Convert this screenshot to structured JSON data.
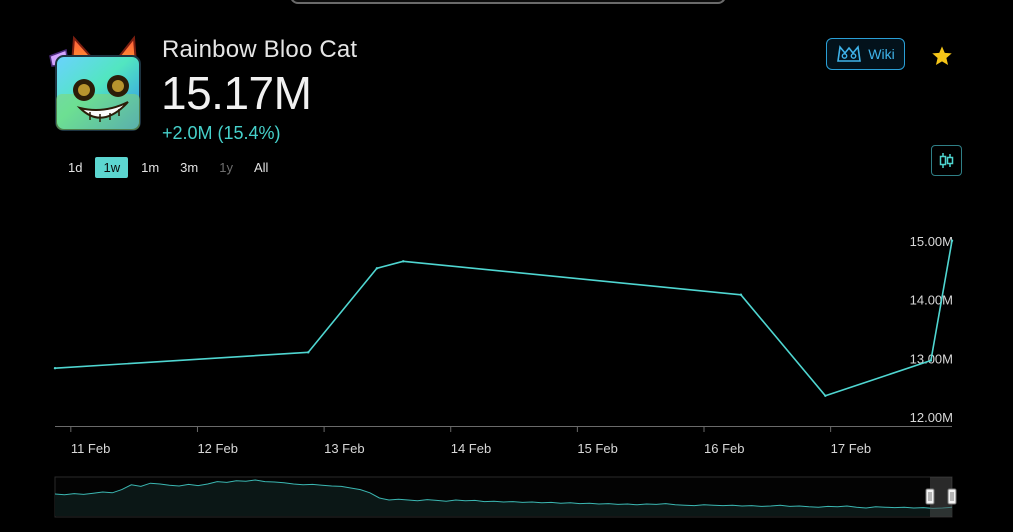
{
  "item": {
    "name": "Rainbow Bloo Cat",
    "value": "15.17M",
    "change": "+2.0M (15.4%)",
    "icon": "rainbow-bloo-cat-icon"
  },
  "actions": {
    "wiki_label": "Wiki",
    "wiki_icon": "wiki-logo-icon",
    "favorite_icon": "star-icon",
    "chart_type_icon": "candlestick-icon"
  },
  "range_tabs": [
    {
      "label": "1d",
      "state": "normal"
    },
    {
      "label": "1w",
      "state": "active"
    },
    {
      "label": "1m",
      "state": "normal"
    },
    {
      "label": "3m",
      "state": "normal"
    },
    {
      "label": "1y",
      "state": "disabled"
    },
    {
      "label": "All",
      "state": "normal"
    }
  ],
  "colors": {
    "line": "#4fd6d1",
    "accent": "#5cd6d0",
    "star": "#f5c518",
    "wiki": "#3fb3ea",
    "axis": "#6a6a6a",
    "navigator_line": "#3bb7b2",
    "navigator_fill": "#0b1716"
  },
  "chart_data": {
    "type": "line",
    "x_axis": "dates",
    "x_ticks": [
      "11 Feb",
      "12 Feb",
      "13 Feb",
      "14 Feb",
      "15 Feb",
      "16 Feb",
      "17 Feb"
    ],
    "y_ticks": [
      "12.00M",
      "13.00M",
      "14.00M",
      "15.00M"
    ],
    "ylim": [
      11.9,
      15.1
    ],
    "xlim": [
      "2025-02-10 21:00",
      "2025-02-17 23:00"
    ],
    "series": [
      {
        "points": [
          {
            "x": "2025-02-10 21:00",
            "y": 12.85
          },
          {
            "x": "2025-02-12 21:00",
            "y": 13.12
          },
          {
            "x": "2025-02-13 10:00",
            "y": 14.55
          },
          {
            "x": "2025-02-13 15:00",
            "y": 14.67
          },
          {
            "x": "2025-02-16 07:00",
            "y": 14.1
          },
          {
            "x": "2025-02-16 23:00",
            "y": 12.38
          },
          {
            "x": "2025-02-17 19:00",
            "y": 12.98
          },
          {
            "x": "2025-02-17 23:00",
            "y": 15.02
          }
        ]
      }
    ],
    "grid": false,
    "legend": "none",
    "navigator": {
      "type": "area",
      "y": [
        0.55,
        0.53,
        0.56,
        0.54,
        0.57,
        0.6,
        0.58,
        0.66,
        0.78,
        0.74,
        0.82,
        0.8,
        0.77,
        0.75,
        0.79,
        0.76,
        0.8,
        0.86,
        0.84,
        0.88,
        0.87,
        0.9,
        0.86,
        0.85,
        0.83,
        0.8,
        0.78,
        0.79,
        0.77,
        0.75,
        0.74,
        0.7,
        0.66,
        0.58,
        0.45,
        0.4,
        0.42,
        0.4,
        0.38,
        0.41,
        0.39,
        0.37,
        0.4,
        0.38,
        0.39,
        0.36,
        0.37,
        0.35,
        0.36,
        0.34,
        0.35,
        0.33,
        0.34,
        0.32,
        0.33,
        0.31,
        0.32,
        0.3,
        0.31,
        0.29,
        0.3,
        0.28,
        0.3,
        0.29,
        0.31,
        0.28,
        0.27,
        0.26,
        0.28,
        0.27,
        0.26,
        0.27,
        0.25,
        0.26,
        0.24,
        0.25,
        0.27,
        0.24,
        0.25,
        0.23,
        0.22,
        0.24,
        0.23,
        0.25,
        0.22,
        0.2,
        0.23,
        0.22,
        0.21,
        0.22,
        0.2,
        0.21,
        0.19,
        0.2,
        0.22
      ]
    }
  }
}
